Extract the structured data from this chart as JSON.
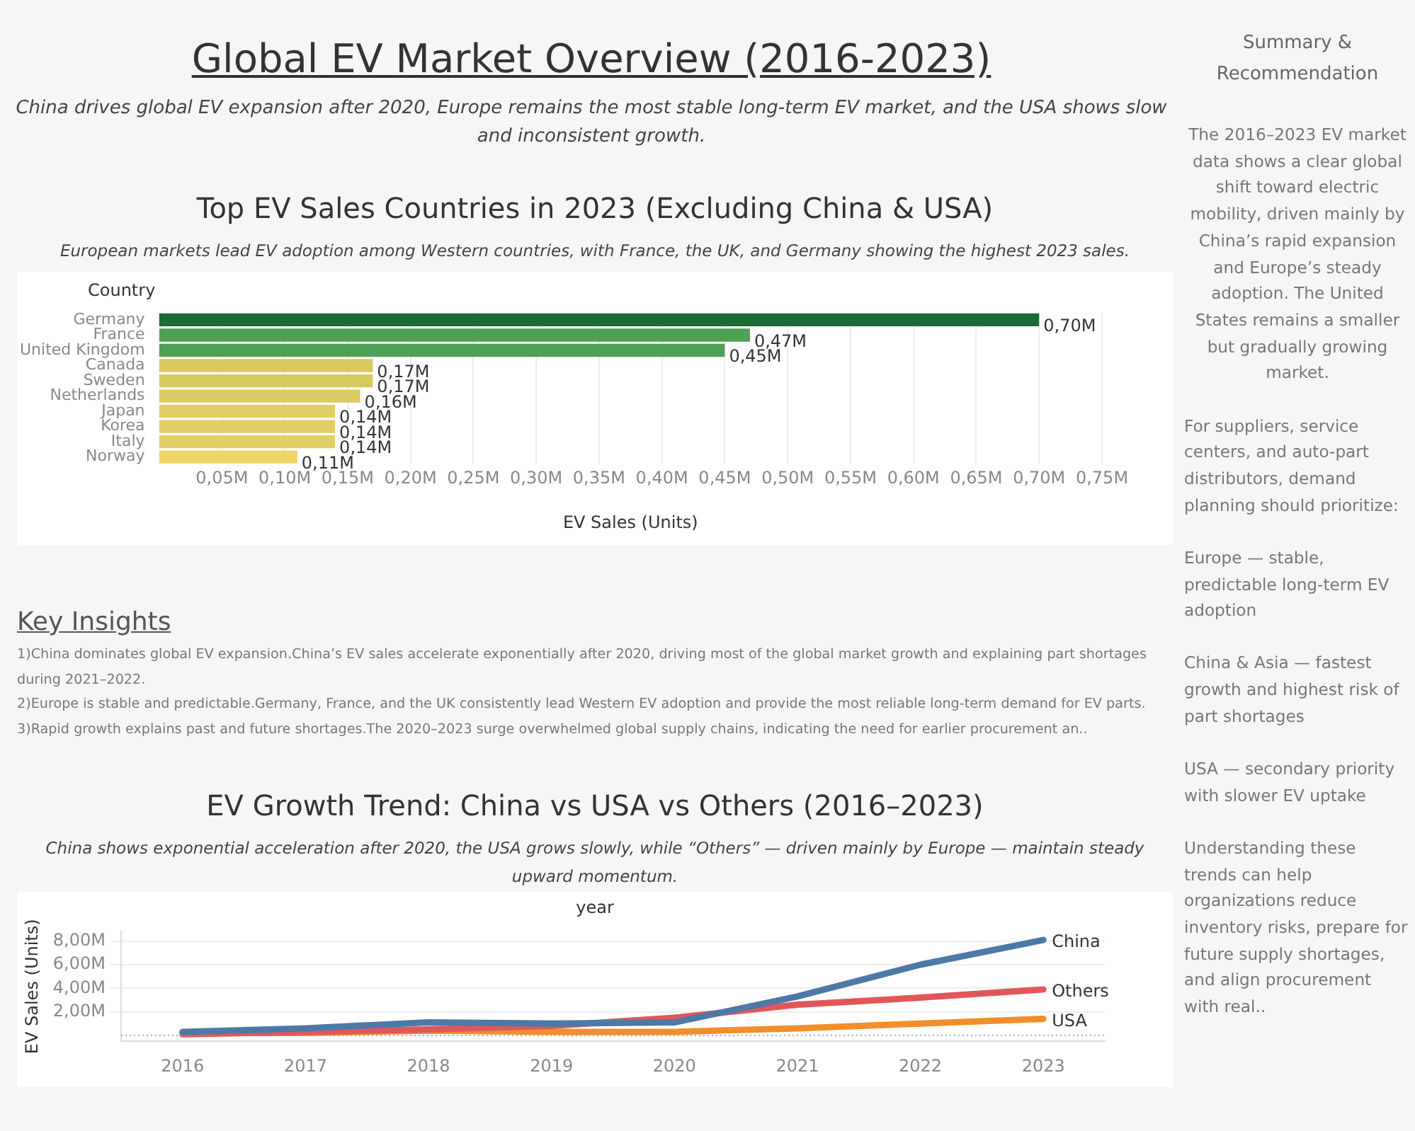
{
  "chart_data": [
    {
      "type": "other",
      "title": "Global EV Market Overview (2016-2023)",
      "subtitle": "China drives global EV expansion after 2020, Europe remains the most stable long-term EV market, and the USA shows slow and inconsistent growth."
    },
    {
      "type": "bar",
      "orientation": "horizontal",
      "title": "Top EV Sales Countries in 2023 (Excluding China & USA)",
      "subtitle": "European markets lead EV adoption among Western countries, with France, the UK, and Germany showing the highest 2023 sales.",
      "xlabel": "EV Sales (Units)",
      "ylabel": "Country",
      "categories": [
        "Germany",
        "France",
        "United Kingdom",
        "Canada",
        "Sweden",
        "Netherlands",
        "Japan",
        "Korea",
        "Italy",
        "Norway"
      ],
      "values": [
        0.7,
        0.47,
        0.45,
        0.17,
        0.17,
        0.16,
        0.14,
        0.14,
        0.14,
        0.11
      ],
      "value_labels": [
        "0,70M",
        "0,47M",
        "0,45M",
        "0,17M",
        "0,17M",
        "0,16M",
        "0,14M",
        "0,14M",
        "0,14M",
        "0,11M"
      ],
      "colors": [
        "#1b6b36",
        "#4f9f55",
        "#4f9f55",
        "#d8c95f",
        "#d8c95f",
        "#dccb62",
        "#e2ce66",
        "#e2ce66",
        "#e2ce66",
        "#f0d56a"
      ],
      "xlim": [
        0,
        0.75
      ],
      "xticks": [
        {
          "value": 0.05,
          "label": "0,05M"
        },
        {
          "value": 0.1,
          "label": "0,10M"
        },
        {
          "value": 0.15,
          "label": "0,15M"
        },
        {
          "value": 0.2,
          "label": "0,20M"
        },
        {
          "value": 0.25,
          "label": "0,25M"
        },
        {
          "value": 0.3,
          "label": "0,30M"
        },
        {
          "value": 0.35,
          "label": "0,35M"
        },
        {
          "value": 0.4,
          "label": "0,40M"
        },
        {
          "value": 0.45,
          "label": "0,45M"
        },
        {
          "value": 0.5,
          "label": "0,50M"
        },
        {
          "value": 0.55,
          "label": "0,55M"
        },
        {
          "value": 0.6,
          "label": "0,60M"
        },
        {
          "value": 0.65,
          "label": "0,65M"
        },
        {
          "value": 0.7,
          "label": "0,70M"
        },
        {
          "value": 0.75,
          "label": "0,75M"
        }
      ],
      "grid": "x"
    },
    {
      "type": "other",
      "title": "Key Insights",
      "annotations": [
        "1)China dominates global EV expansion.China’s EV sales accelerate exponentially after 2020, driving most of the global market growth and explaining part shortages during 2021–2022.",
        "2)Europe is stable and predictable.Germany, France, and the UK consistently lead Western EV adoption and provide the most reliable long-term demand for EV parts.",
        "3)Rapid growth explains past and future shortages.The 2020–2023 surge overwhelmed global supply chains, indicating the need for earlier procurement an.."
      ]
    },
    {
      "type": "line",
      "title": "EV Growth Trend: China vs USA vs Others (2016–2023)",
      "subtitle": "China shows exponential acceleration after 2020, the USA grows slowly, while “Others” — driven mainly by Europe — maintain steady upward momentum.",
      "xlabel": "year",
      "ylabel": "EV Sales (Units)",
      "categories": [
        "2016",
        "2017",
        "2018",
        "2019",
        "2020",
        "2021",
        "2022",
        "2023"
      ],
      "series": [
        {
          "name": "China",
          "color": "#4e79a7",
          "values": [
            0.3,
            0.6,
            1.1,
            1.0,
            1.1,
            3.3,
            6.0,
            8.1
          ]
        },
        {
          "name": "Others",
          "color": "#e15759",
          "values": [
            0.1,
            0.3,
            0.5,
            0.8,
            1.5,
            2.6,
            3.2,
            3.9
          ]
        },
        {
          "name": "USA",
          "color": "#f28e2b",
          "values": [
            0.2,
            0.2,
            0.4,
            0.3,
            0.3,
            0.6,
            1.0,
            1.4
          ]
        }
      ],
      "ylim": [
        -0.5,
        8.8
      ],
      "yticks": [
        {
          "value": 2,
          "label": "2,00M"
        },
        {
          "value": 4,
          "label": "4,00M"
        },
        {
          "value": 6,
          "label": "6,00M"
        },
        {
          "value": 8,
          "label": "8,00M"
        }
      ],
      "ref_lines": [
        {
          "axis": "y",
          "value": 0,
          "line_style": "dotted",
          "color": "#aaaaaa"
        }
      ],
      "grid": "y"
    },
    {
      "type": "other",
      "title": "Summary & Recommendation",
      "annotations": [
        "The 2016–2023 EV market data shows a clear global shift toward electric mobility, driven mainly by China’s rapid expansion and Europe’s steady adoption. The United States remains a smaller but gradually growing market.",
        "For suppliers, service centers, and auto-part distributors, demand planning should prioritize:",
        "Europe — stable, predictable long-term EV adoption",
        "China & Asia — fastest growth and highest risk of part shortages",
        "USA — secondary priority with slower EV uptake",
        "Understanding these trends can help organizations reduce inventory risks, prepare for future supply shortages, and align procurement with real.."
      ]
    }
  ]
}
